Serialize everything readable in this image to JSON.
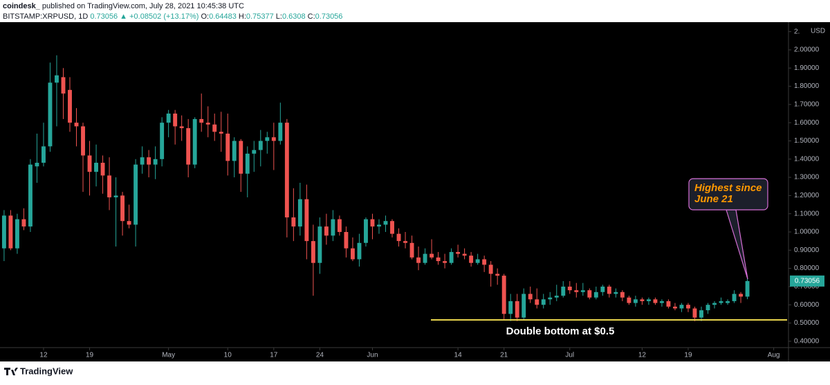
{
  "header": {
    "author": "coindesk_",
    "published": "published on TradingView.com, July 28, 2021 10:45:38 UTC",
    "symbol": "BITSTAMP:XRPUSD, 1D",
    "change": "▲ +0.08502 (+13.17%)",
    "open_label": "O:",
    "high_label": "H:",
    "low_label": "L:",
    "close_label": "C:"
  },
  "footer": {
    "brand": "TradingView"
  },
  "chart_data": {
    "type": "candlestick",
    "y_unit": "USD",
    "annotations": {
      "callout": [
        "Highest since",
        "June 21"
      ],
      "support": "Double bottom at $0.5"
    },
    "up_color": "#26a69a",
    "down_color": "#ef5350",
    "xlim": [
      -0.62,
      119.25
    ],
    "xticks": [
      {
        "value": 6,
        "label": "12"
      },
      {
        "value": 13,
        "label": "19"
      },
      {
        "value": 25,
        "label": "May"
      },
      {
        "value": 34,
        "label": "10"
      },
      {
        "value": 41,
        "label": "17"
      },
      {
        "value": 48,
        "label": "24"
      },
      {
        "value": 56,
        "label": "Jun"
      },
      {
        "value": 69,
        "label": "14"
      },
      {
        "value": 76,
        "label": "21"
      },
      {
        "value": 86,
        "label": "Jul"
      },
      {
        "value": 97,
        "label": "12"
      },
      {
        "value": 104,
        "label": "19"
      },
      {
        "value": 117,
        "label": "Aug"
      }
    ],
    "ylim": [
      0.365,
      2.152
    ],
    "yticks": [
      {
        "value": 0.4,
        "label": "0.40000"
      },
      {
        "value": 0.5,
        "label": "0.50000"
      },
      {
        "value": 0.6,
        "label": "0.60000"
      },
      {
        "value": 0.7,
        "label": "0.70000"
      },
      {
        "value": 0.8,
        "label": "0.80000"
      },
      {
        "value": 0.9,
        "label": "0.90000"
      },
      {
        "value": 1.0,
        "label": "1.00000"
      },
      {
        "value": 1.1,
        "label": "1.10000"
      },
      {
        "value": 1.2,
        "label": "1.20000"
      },
      {
        "value": 1.3,
        "label": "1.30000"
      },
      {
        "value": 1.4,
        "label": "1.40000"
      },
      {
        "value": 1.5,
        "label": "1.50000"
      },
      {
        "value": 1.6,
        "label": "1.60000"
      },
      {
        "value": 1.7,
        "label": "1.70000"
      },
      {
        "value": 1.8,
        "label": "1.80000"
      },
      {
        "value": 1.9,
        "label": "1.90000"
      },
      {
        "value": 2.0,
        "label": "2.00000"
      },
      {
        "value": 2.1,
        "label": "2."
      }
    ],
    "open": [
      0.91,
      1.09,
      0.91,
      1.07,
      1.03,
      1.36,
      1.38,
      1.47,
      1.82,
      1.85,
      1.78,
      1.6,
      1.58,
      1.42,
      1.33,
      1.38,
      1.31,
      1.19,
      1.2,
      1.06,
      1.04,
      1.37,
      1.41,
      1.37,
      1.4,
      1.6,
      1.65,
      1.58,
      1.57,
      1.37,
      1.62,
      1.6,
      1.59,
      1.55,
      1.54,
      1.39,
      1.5,
      1.32,
      1.43,
      1.45,
      1.5,
      1.52,
      1.5,
      1.6,
      1.08,
      1.03,
      1.18,
      0.95,
      0.83,
      1.03,
      0.98,
      1.07,
      1.0,
      0.91,
      0.85,
      0.94,
      1.07,
      1.03,
      1.04,
      1.06,
      0.99,
      0.95,
      0.94,
      0.86,
      0.83,
      0.88,
      0.86,
      0.84,
      0.83,
      0.89,
      0.88,
      0.87,
      0.83,
      0.85,
      0.82,
      0.77,
      0.76,
      0.55,
      0.62,
      0.53,
      0.66,
      0.63,
      0.6,
      0.63,
      0.64,
      0.65,
      0.7,
      0.68,
      0.67,
      0.68,
      0.64,
      0.67,
      0.7,
      0.66,
      0.67,
      0.64,
      0.61,
      0.63,
      0.62,
      0.63,
      0.61,
      0.62,
      0.59,
      0.58,
      0.6,
      0.58,
      0.53,
      0.57,
      0.6,
      0.61,
      0.61,
      0.62,
      0.66,
      0.64483
    ],
    "high": [
      1.12,
      1.12,
      1.1,
      1.13,
      1.4,
      1.54,
      1.6,
      1.93,
      1.97,
      1.9,
      1.85,
      1.68,
      1.6,
      1.5,
      1.48,
      1.42,
      1.41,
      1.3,
      1.22,
      1.15,
      1.4,
      1.47,
      1.45,
      1.47,
      1.63,
      1.67,
      1.67,
      1.64,
      1.62,
      1.63,
      1.76,
      1.69,
      1.65,
      1.66,
      1.65,
      1.52,
      1.51,
      1.47,
      1.5,
      1.56,
      1.55,
      1.6,
      1.71,
      1.62,
      1.24,
      1.27,
      1.26,
      1.04,
      1.08,
      1.1,
      1.12,
      1.09,
      1.03,
      0.97,
      0.99,
      1.08,
      1.1,
      1.07,
      1.09,
      1.07,
      1.02,
      1.0,
      0.98,
      0.92,
      0.91,
      0.96,
      0.89,
      0.88,
      0.91,
      0.93,
      0.91,
      0.89,
      0.88,
      0.87,
      0.84,
      0.8,
      0.77,
      0.66,
      0.66,
      0.69,
      0.7,
      0.69,
      0.66,
      0.67,
      0.71,
      0.73,
      0.73,
      0.72,
      0.72,
      0.69,
      0.7,
      0.71,
      0.71,
      0.69,
      0.68,
      0.65,
      0.65,
      0.64,
      0.64,
      0.64,
      0.63,
      0.63,
      0.61,
      0.61,
      0.61,
      0.59,
      0.59,
      0.61,
      0.62,
      0.64,
      0.63,
      0.68,
      0.67,
      0.75377
    ],
    "low": [
      0.84,
      0.9,
      0.88,
      1.01,
      1.0,
      1.27,
      1.36,
      1.44,
      1.58,
      1.62,
      1.55,
      1.47,
      1.22,
      1.2,
      1.25,
      1.21,
      1.12,
      0.92,
      0.98,
      1.02,
      0.92,
      1.32,
      1.3,
      1.29,
      1.36,
      1.52,
      1.48,
      1.5,
      1.3,
      1.35,
      1.55,
      1.52,
      1.5,
      1.44,
      1.31,
      1.3,
      1.22,
      1.19,
      1.33,
      1.36,
      1.43,
      1.34,
      1.48,
      0.97,
      0.95,
      0.98,
      0.85,
      0.65,
      0.77,
      0.93,
      0.95,
      0.98,
      0.86,
      0.84,
      0.81,
      0.92,
      0.96,
      0.99,
      1.0,
      0.97,
      0.92,
      0.91,
      0.85,
      0.79,
      0.82,
      0.85,
      0.82,
      0.8,
      0.82,
      0.86,
      0.85,
      0.81,
      0.82,
      0.78,
      0.7,
      0.71,
      0.52,
      0.51,
      0.51,
      0.52,
      0.61,
      0.58,
      0.58,
      0.6,
      0.62,
      0.64,
      0.66,
      0.64,
      0.65,
      0.63,
      0.63,
      0.65,
      0.64,
      0.64,
      0.62,
      0.6,
      0.59,
      0.6,
      0.6,
      0.6,
      0.59,
      0.58,
      0.57,
      0.56,
      0.56,
      0.51,
      0.51,
      0.55,
      0.58,
      0.6,
      0.6,
      0.61,
      0.61,
      0.6308
    ],
    "close": [
      1.09,
      0.91,
      1.07,
      1.03,
      1.37,
      1.38,
      1.47,
      1.82,
      1.86,
      1.76,
      1.6,
      1.58,
      1.42,
      1.33,
      1.38,
      1.31,
      1.19,
      1.2,
      1.06,
      1.04,
      1.37,
      1.41,
      1.37,
      1.4,
      1.6,
      1.65,
      1.58,
      1.57,
      1.37,
      1.62,
      1.6,
      1.59,
      1.55,
      1.54,
      1.39,
      1.5,
      1.32,
      1.43,
      1.45,
      1.5,
      1.52,
      1.5,
      1.6,
      1.08,
      1.03,
      1.18,
      0.95,
      0.83,
      1.03,
      0.98,
      1.07,
      1.0,
      0.91,
      0.85,
      0.94,
      1.07,
      1.03,
      1.04,
      1.06,
      0.99,
      0.95,
      0.94,
      0.86,
      0.83,
      0.88,
      0.86,
      0.84,
      0.83,
      0.89,
      0.88,
      0.87,
      0.83,
      0.85,
      0.82,
      0.77,
      0.76,
      0.55,
      0.62,
      0.53,
      0.66,
      0.63,
      0.6,
      0.63,
      0.64,
      0.65,
      0.7,
      0.68,
      0.67,
      0.68,
      0.64,
      0.67,
      0.7,
      0.66,
      0.67,
      0.64,
      0.61,
      0.63,
      0.62,
      0.63,
      0.61,
      0.62,
      0.59,
      0.58,
      0.6,
      0.58,
      0.53,
      0.57,
      0.6,
      0.61,
      0.62,
      0.62,
      0.66,
      0.645,
      0.73056
    ]
  }
}
